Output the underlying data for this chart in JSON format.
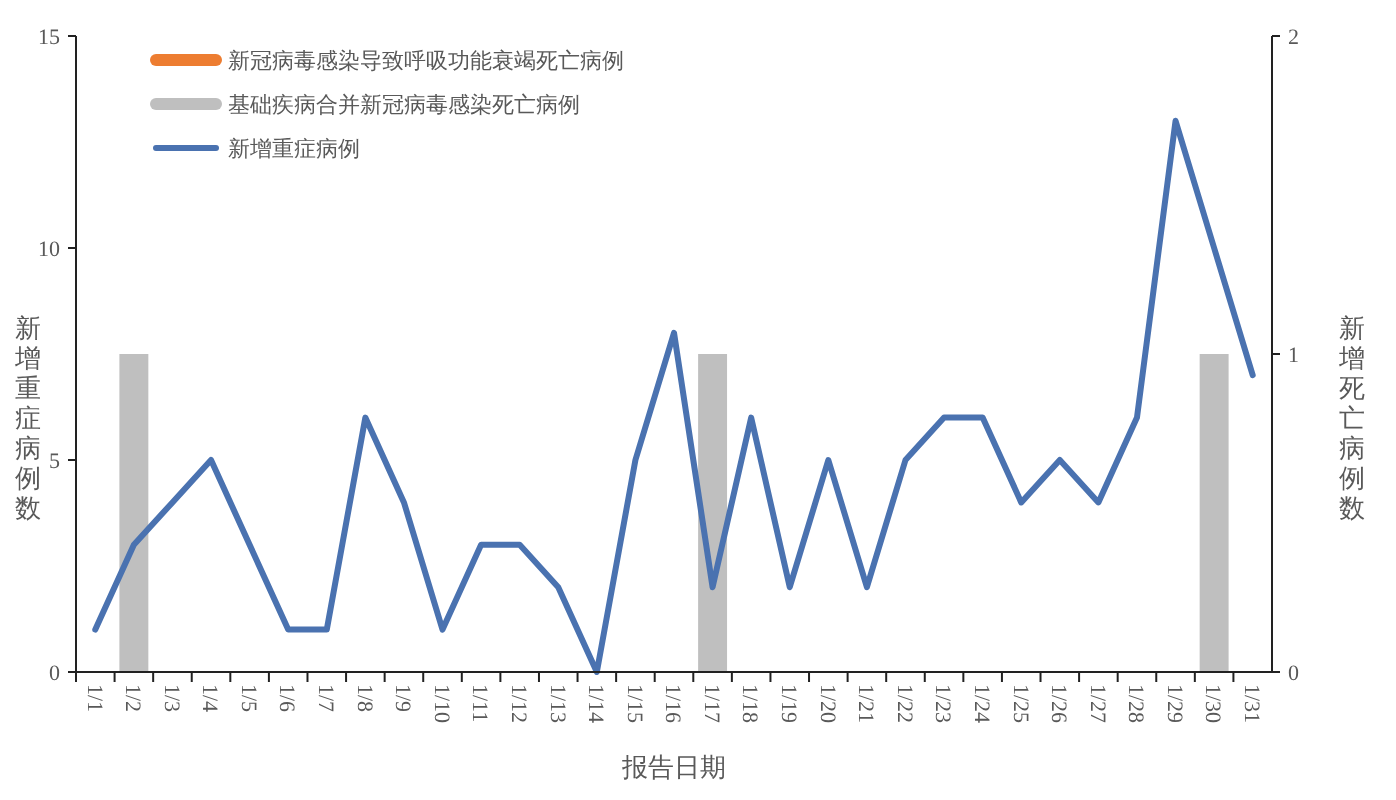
{
  "chart_data": {
    "type": "bar",
    "xlabel": "报告日期",
    "ylabel": "新增重症病例数",
    "y2label": "新增死亡病例数",
    "categories": [
      "1/1",
      "1/2",
      "1/3",
      "1/4",
      "1/5",
      "1/6",
      "1/7",
      "1/8",
      "1/9",
      "1/10",
      "1/11",
      "1/12",
      "1/13",
      "1/14",
      "1/15",
      "1/16",
      "1/17",
      "1/18",
      "1/19",
      "1/20",
      "1/21",
      "1/22",
      "1/23",
      "1/24",
      "1/25",
      "1/26",
      "1/27",
      "1/28",
      "1/29",
      "1/30",
      "1/31"
    ],
    "series": [
      {
        "name": "新冠病毒感染导致呼吸功能衰竭死亡病例",
        "axis": "y2",
        "color": "#ed7d31",
        "values": [
          0,
          0,
          0,
          0,
          0,
          0,
          0,
          0,
          0,
          0,
          0,
          0,
          0,
          0,
          0,
          0,
          0,
          0,
          0,
          0,
          0,
          0,
          0,
          0,
          0,
          0,
          0,
          0,
          0,
          0,
          0
        ]
      },
      {
        "name": "基础疾病合并新冠病毒感染死亡病例",
        "axis": "y2",
        "color": "#bfbfbf",
        "values": [
          0,
          1,
          0,
          0,
          0,
          0,
          0,
          0,
          0,
          0,
          0,
          0,
          0,
          0,
          0,
          0,
          1,
          0,
          0,
          0,
          0,
          0,
          0,
          0,
          0,
          0,
          0,
          0,
          0,
          1,
          0
        ]
      },
      {
        "name": "新增重症病例",
        "type": "line",
        "color": "#4a72b0",
        "values": [
          1,
          3,
          4,
          5,
          3,
          1,
          1,
          6,
          4,
          1,
          3,
          3,
          2,
          0,
          5,
          8,
          2,
          6,
          2,
          5,
          2,
          5,
          6,
          6,
          4,
          5,
          4,
          6,
          13,
          10,
          7
        ]
      }
    ],
    "stacked": true,
    "ylim": [
      0,
      15
    ],
    "yticks": [
      0,
      5,
      10,
      15
    ],
    "y2lim": [
      0,
      2
    ],
    "y2ticks": [
      0,
      1,
      2
    ],
    "grid": false,
    "legend": "top left",
    "marker": "none",
    "line_style": "solid"
  }
}
